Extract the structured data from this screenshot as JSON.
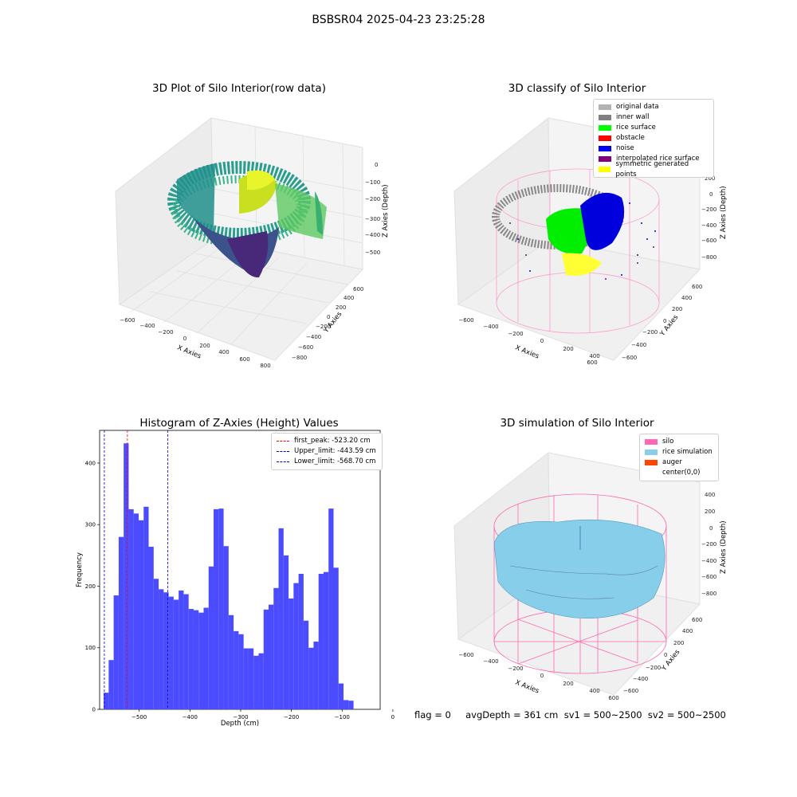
{
  "suptitle": "BSBSR04 2025-04-23 23:25:28",
  "footer": "flag = 0     avgDepth = 361 cm  sv1 = 500~2500  sv2 = 500~2500",
  "colors": {
    "original": "#b2b2b2",
    "inner_wall": "#808080",
    "rice_surface": "#00ff00",
    "obstacle": "#ff0000",
    "noise": "#0000ee",
    "interpolated": "#800080",
    "symmetric": "#ffff00",
    "silo": "#ff69b4",
    "rice_sim": "#87ceeb",
    "auger": "#ff4500",
    "hist": "#4b4bff"
  },
  "chart_data": [
    {
      "type": "scatter",
      "title": "3D Plot of Silo Interior(row data)",
      "xlabel": "X Axies",
      "ylabel": "Y Axies",
      "zlabel": "Z Axies (Depth)",
      "x_ticks": [
        "−600",
        "−400",
        "−200",
        "0",
        "200",
        "400",
        "600",
        "800"
      ],
      "y_ticks": [
        "−800",
        "−600",
        "−400",
        "−200",
        "0",
        "200",
        "400",
        "600"
      ],
      "z_ticks": [
        "−500",
        "−400",
        "−300",
        "−200",
        "−100",
        "0"
      ]
    },
    {
      "type": "scatter",
      "title": "3D classify of Silo Interior",
      "xlabel": "X Axies",
      "ylabel": "Y Axies",
      "zlabel": "Z Axies (Depth)",
      "x_ticks": [
        "−600",
        "−400",
        "−200",
        "0",
        "200",
        "400",
        "600"
      ],
      "y_ticks": [
        "−600",
        "−400",
        "−200",
        "0",
        "200",
        "400",
        "600"
      ],
      "z_ticks": [
        "−800",
        "−600",
        "−400",
        "−200",
        "0",
        "200"
      ],
      "legend": [
        "original data",
        "inner wall",
        "rice surface",
        "obstacle",
        "noise",
        "interpolated rice surface",
        "symmetric generated points"
      ]
    },
    {
      "type": "bar",
      "title": "Histogram of Z-Axies (Height) Values",
      "xlabel": "Depth (cm)",
      "ylabel": "Frequency",
      "xlim": [
        -578,
        -25
      ],
      "ylim": [
        0,
        453
      ],
      "x_ticks": [
        -500,
        -400,
        -300,
        -200,
        -100,
        0
      ],
      "x_tick_labels": [
        "−500",
        "−400",
        "−300",
        "−200",
        "−100",
        "0"
      ],
      "y_ticks": [
        0,
        100,
        200,
        300,
        400
      ],
      "bins_start": -570,
      "bin_width": 9.85,
      "values": [
        27,
        80,
        185,
        280,
        432,
        325,
        318,
        307,
        329,
        264,
        212,
        195,
        190,
        183,
        178,
        193,
        187,
        163,
        161,
        157,
        165,
        232,
        325,
        326,
        265,
        153,
        127,
        122,
        99,
        99,
        87,
        91,
        162,
        170,
        197,
        294,
        250,
        180,
        205,
        220,
        144,
        100,
        110,
        220,
        223,
        326,
        230,
        42,
        15,
        14
      ],
      "vlines": [
        {
          "label": "first_peak: -523.20 cm",
          "x": -523.2,
          "color": "#ff0000"
        },
        {
          "label": "Upper_limit: -443.59 cm",
          "x": -443.59,
          "color": "#0000cc"
        },
        {
          "label": "Lower_limit: -568.70 cm",
          "x": -568.7,
          "color": "#0000cc"
        }
      ]
    },
    {
      "type": "area",
      "title": "3D simulation of Silo Interior",
      "xlabel": "X Axies",
      "ylabel": "Y Axies",
      "zlabel": "Z Axies (Depth)",
      "x_ticks": [
        "−600",
        "−400",
        "−200",
        "0",
        "200",
        "400",
        "600"
      ],
      "y_ticks": [
        "−600",
        "−400",
        "−200",
        "0",
        "200",
        "400",
        "600"
      ],
      "z_ticks": [
        "−800",
        "−600",
        "−400",
        "−200",
        "0",
        "200",
        "400"
      ],
      "legend": [
        "silo",
        "rice simulation",
        "auger",
        "center(0,0)"
      ]
    }
  ]
}
